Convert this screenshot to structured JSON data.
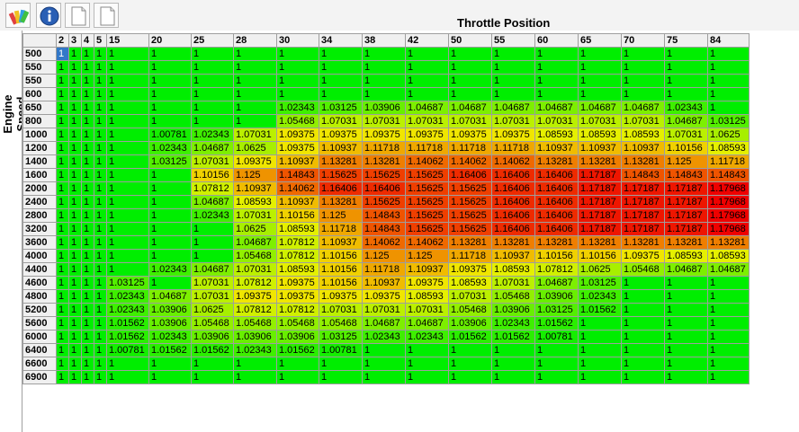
{
  "toolbar": {
    "buttons": [
      {
        "name": "color-palette-button",
        "icon": "palette-icon"
      },
      {
        "name": "info-button",
        "icon": "info-icon"
      },
      {
        "name": "new-page-button",
        "icon": "page-icon"
      },
      {
        "name": "new-page-2-button",
        "icon": "page-icon"
      }
    ]
  },
  "table": {
    "x_title": "Throttle Position",
    "y_title": "Engine Speed",
    "columns": [
      "2",
      "3",
      "4",
      "5",
      "15",
      "20",
      "25",
      "28",
      "30",
      "34",
      "38",
      "42",
      "50",
      "55",
      "60",
      "65",
      "70",
      "75",
      "84"
    ],
    "rows": [
      {
        "label": "500",
        "values": [
          "1",
          "1",
          "1",
          "1",
          "1",
          "1",
          "1",
          "1",
          "1",
          "1",
          "1",
          "1",
          "1",
          "1",
          "1",
          "1",
          "1",
          "1",
          "1"
        ]
      },
      {
        "label": "550",
        "values": [
          "1",
          "1",
          "1",
          "1",
          "1",
          "1",
          "1",
          "1",
          "1",
          "1",
          "1",
          "1",
          "1",
          "1",
          "1",
          "1",
          "1",
          "1",
          "1"
        ]
      },
      {
        "label": "550",
        "values": [
          "1",
          "1",
          "1",
          "1",
          "1",
          "1",
          "1",
          "1",
          "1",
          "1",
          "1",
          "1",
          "1",
          "1",
          "1",
          "1",
          "1",
          "1",
          "1"
        ]
      },
      {
        "label": "600",
        "values": [
          "1",
          "1",
          "1",
          "1",
          "1",
          "1",
          "1",
          "1",
          "1",
          "1",
          "1",
          "1",
          "1",
          "1",
          "1",
          "1",
          "1",
          "1",
          "1"
        ]
      },
      {
        "label": "650",
        "values": [
          "1",
          "1",
          "1",
          "1",
          "1",
          "1",
          "1",
          "1",
          "1.02343",
          "1.03125",
          "1.03906",
          "1.04687",
          "1.04687",
          "1.04687",
          "1.04687",
          "1.04687",
          "1.04687",
          "1.02343",
          "1"
        ]
      },
      {
        "label": "800",
        "values": [
          "1",
          "1",
          "1",
          "1",
          "1",
          "1",
          "1",
          "1",
          "1.05468",
          "1.07031",
          "1.07031",
          "1.07031",
          "1.07031",
          "1.07031",
          "1.07031",
          "1.07031",
          "1.07031",
          "1.04687",
          "1.03125"
        ]
      },
      {
        "label": "1000",
        "values": [
          "1",
          "1",
          "1",
          "1",
          "1",
          "1.00781",
          "1.02343",
          "1.07031",
          "1.09375",
          "1.09375",
          "1.09375",
          "1.09375",
          "1.09375",
          "1.09375",
          "1.08593",
          "1.08593",
          "1.08593",
          "1.07031",
          "1.0625"
        ]
      },
      {
        "label": "1200",
        "values": [
          "1",
          "1",
          "1",
          "1",
          "1",
          "1.02343",
          "1.04687",
          "1.0625",
          "1.09375",
          "1.10937",
          "1.11718",
          "1.11718",
          "1.11718",
          "1.11718",
          "1.10937",
          "1.10937",
          "1.10937",
          "1.10156",
          "1.08593"
        ]
      },
      {
        "label": "1400",
        "values": [
          "1",
          "1",
          "1",
          "1",
          "1",
          "1.03125",
          "1.07031",
          "1.09375",
          "1.10937",
          "1.13281",
          "1.13281",
          "1.14062",
          "1.14062",
          "1.14062",
          "1.13281",
          "1.13281",
          "1.13281",
          "1.125",
          "1.11718"
        ]
      },
      {
        "label": "1600",
        "values": [
          "1",
          "1",
          "1",
          "1",
          "1",
          "1",
          "1.10156",
          "1.125",
          "1.14843",
          "1.15625",
          "1.15625",
          "1.15625",
          "1.16406",
          "1.16406",
          "1.16406",
          "1.17187",
          "1.14843",
          "1.14843",
          "1.14843"
        ]
      },
      {
        "label": "2000",
        "values": [
          "1",
          "1",
          "1",
          "1",
          "1",
          "1",
          "1.07812",
          "1.10937",
          "1.14062",
          "1.16406",
          "1.16406",
          "1.15625",
          "1.15625",
          "1.16406",
          "1.16406",
          "1.17187",
          "1.17187",
          "1.17187",
          "1.17968"
        ]
      },
      {
        "label": "2400",
        "values": [
          "1",
          "1",
          "1",
          "1",
          "1",
          "1",
          "1.04687",
          "1.08593",
          "1.10937",
          "1.13281",
          "1.15625",
          "1.15625",
          "1.15625",
          "1.16406",
          "1.16406",
          "1.17187",
          "1.17187",
          "1.17187",
          "1.17968"
        ]
      },
      {
        "label": "2800",
        "values": [
          "1",
          "1",
          "1",
          "1",
          "1",
          "1",
          "1.02343",
          "1.07031",
          "1.10156",
          "1.125",
          "1.14843",
          "1.15625",
          "1.15625",
          "1.16406",
          "1.16406",
          "1.17187",
          "1.17187",
          "1.17187",
          "1.17968"
        ]
      },
      {
        "label": "3200",
        "values": [
          "1",
          "1",
          "1",
          "1",
          "1",
          "1",
          "1",
          "1.0625",
          "1.08593",
          "1.11718",
          "1.14843",
          "1.15625",
          "1.15625",
          "1.16406",
          "1.16406",
          "1.17187",
          "1.17187",
          "1.17187",
          "1.17968"
        ]
      },
      {
        "label": "3600",
        "values": [
          "1",
          "1",
          "1",
          "1",
          "1",
          "1",
          "1",
          "1.04687",
          "1.07812",
          "1.10937",
          "1.14062",
          "1.14062",
          "1.13281",
          "1.13281",
          "1.13281",
          "1.13281",
          "1.13281",
          "1.13281",
          "1.13281"
        ]
      },
      {
        "label": "4000",
        "values": [
          "1",
          "1",
          "1",
          "1",
          "1",
          "1",
          "1",
          "1.05468",
          "1.07812",
          "1.10156",
          "1.125",
          "1.125",
          "1.11718",
          "1.10937",
          "1.10156",
          "1.10156",
          "1.09375",
          "1.08593",
          "1.08593"
        ]
      },
      {
        "label": "4400",
        "values": [
          "1",
          "1",
          "1",
          "1",
          "1",
          "1.02343",
          "1.04687",
          "1.07031",
          "1.08593",
          "1.10156",
          "1.11718",
          "1.10937",
          "1.09375",
          "1.08593",
          "1.07812",
          "1.0625",
          "1.05468",
          "1.04687",
          "1.04687"
        ]
      },
      {
        "label": "4600",
        "values": [
          "1",
          "1",
          "1",
          "1",
          "1.03125",
          "1",
          "1.07031",
          "1.07812",
          "1.09375",
          "1.10156",
          "1.10937",
          "1.09375",
          "1.08593",
          "1.07031",
          "1.04687",
          "1.03125",
          "1",
          "1",
          "1"
        ]
      },
      {
        "label": "4800",
        "values": [
          "1",
          "1",
          "1",
          "1",
          "1.02343",
          "1.04687",
          "1.07031",
          "1.09375",
          "1.09375",
          "1.09375",
          "1.09375",
          "1.08593",
          "1.07031",
          "1.05468",
          "1.03906",
          "1.02343",
          "1",
          "1",
          "1"
        ]
      },
      {
        "label": "5200",
        "values": [
          "1",
          "1",
          "1",
          "1",
          "1.02343",
          "1.03906",
          "1.0625",
          "1.07812",
          "1.07812",
          "1.07031",
          "1.07031",
          "1.07031",
          "1.05468",
          "1.03906",
          "1.03125",
          "1.01562",
          "1",
          "1",
          "1"
        ]
      },
      {
        "label": "5600",
        "values": [
          "1",
          "1",
          "1",
          "1",
          "1.01562",
          "1.03906",
          "1.05468",
          "1.05468",
          "1.05468",
          "1.05468",
          "1.04687",
          "1.04687",
          "1.03906",
          "1.02343",
          "1.01562",
          "1",
          "1",
          "1",
          "1"
        ]
      },
      {
        "label": "6000",
        "values": [
          "1",
          "1",
          "1",
          "1",
          "1.01562",
          "1.02343",
          "1.03906",
          "1.03906",
          "1.03906",
          "1.03125",
          "1.02343",
          "1.02343",
          "1.01562",
          "1.01562",
          "1.00781",
          "1",
          "1",
          "1",
          "1"
        ]
      },
      {
        "label": "6400",
        "values": [
          "1",
          "1",
          "1",
          "1",
          "1.00781",
          "1.01562",
          "1.01562",
          "1.02343",
          "1.01562",
          "1.00781",
          "1",
          "1",
          "1",
          "1",
          "1",
          "1",
          "1",
          "1",
          "1"
        ]
      },
      {
        "label": "6600",
        "values": [
          "1",
          "1",
          "1",
          "1",
          "1",
          "1",
          "1",
          "1",
          "1",
          "1",
          "1",
          "1",
          "1",
          "1",
          "1",
          "1",
          "1",
          "1",
          "1"
        ]
      },
      {
        "label": "6900",
        "values": [
          "1",
          "1",
          "1",
          "1",
          "1",
          "1",
          "1",
          "1",
          "1",
          "1",
          "1",
          "1",
          "1",
          "1",
          "1",
          "1",
          "1",
          "1",
          "1"
        ]
      }
    ],
    "selected_cell": {
      "row": 0,
      "col": 0
    }
  },
  "colors": {
    "selection": "#3278c8",
    "heat_low": "#00ee00",
    "heat_mid": "#f0f000",
    "heat_high": "#ee0000",
    "header_bg": "#f0f0f0",
    "grid_line": "#9e9e9e"
  }
}
